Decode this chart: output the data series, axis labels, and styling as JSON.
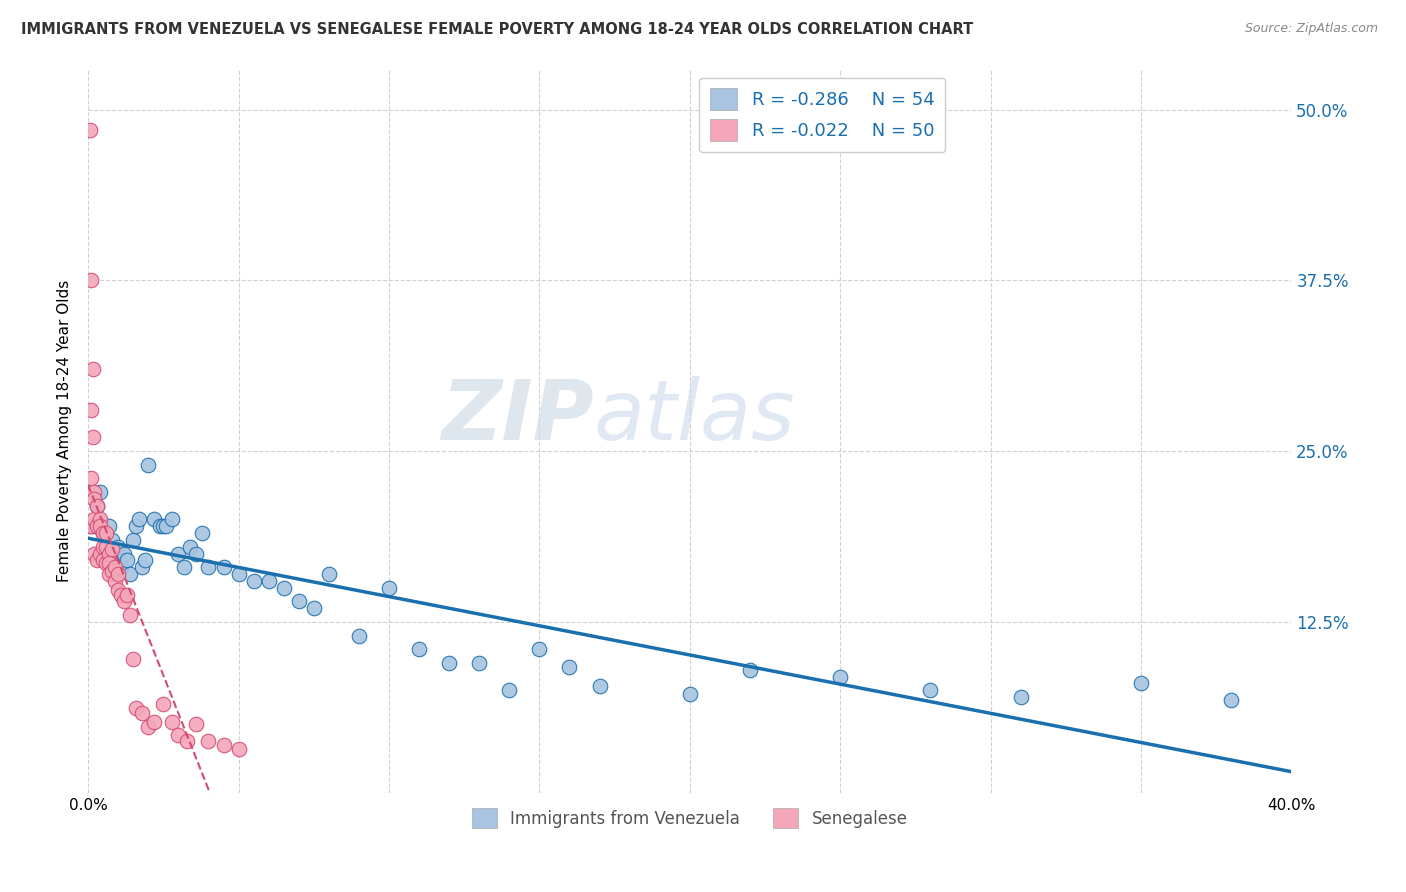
{
  "title": "IMMIGRANTS FROM VENEZUELA VS SENEGALESE FEMALE POVERTY AMONG 18-24 YEAR OLDS CORRELATION CHART",
  "source": "Source: ZipAtlas.com",
  "ylabel": "Female Poverty Among 18-24 Year Olds",
  "yticks": [
    0.0,
    0.125,
    0.25,
    0.375,
    0.5
  ],
  "ytick_labels": [
    "",
    "12.5%",
    "25.0%",
    "37.5%",
    "50.0%"
  ],
  "xlim": [
    0.0,
    0.4
  ],
  "ylim": [
    0.0,
    0.53
  ],
  "legend_blue_r": "R = -0.286",
  "legend_blue_n": "N = 54",
  "legend_pink_r": "R = -0.022",
  "legend_pink_n": "N = 50",
  "blue_color": "#a8c4e0",
  "pink_color": "#f4a7b9",
  "blue_line_color": "#1a6faf",
  "pink_line_color": "#d44a72",
  "watermark_zip": "ZIP",
  "watermark_atlas": "atlas",
  "background_color": "#ffffff",
  "grid_color": "#cccccc",
  "blue_scatter_x": [
    0.002,
    0.003,
    0.004,
    0.005,
    0.006,
    0.007,
    0.008,
    0.009,
    0.01,
    0.011,
    0.012,
    0.013,
    0.014,
    0.015,
    0.016,
    0.017,
    0.018,
    0.019,
    0.02,
    0.022,
    0.024,
    0.025,
    0.026,
    0.028,
    0.03,
    0.032,
    0.034,
    0.036,
    0.038,
    0.04,
    0.045,
    0.05,
    0.055,
    0.06,
    0.065,
    0.07,
    0.075,
    0.08,
    0.09,
    0.1,
    0.11,
    0.12,
    0.13,
    0.14,
    0.15,
    0.16,
    0.17,
    0.2,
    0.22,
    0.25,
    0.28,
    0.31,
    0.35,
    0.38
  ],
  "blue_scatter_y": [
    0.195,
    0.21,
    0.22,
    0.19,
    0.18,
    0.195,
    0.185,
    0.175,
    0.18,
    0.165,
    0.175,
    0.17,
    0.16,
    0.185,
    0.195,
    0.2,
    0.165,
    0.17,
    0.24,
    0.2,
    0.195,
    0.195,
    0.195,
    0.2,
    0.175,
    0.165,
    0.18,
    0.175,
    0.19,
    0.165,
    0.165,
    0.16,
    0.155,
    0.155,
    0.15,
    0.14,
    0.135,
    0.16,
    0.115,
    0.15,
    0.105,
    0.095,
    0.095,
    0.075,
    0.105,
    0.092,
    0.078,
    0.072,
    0.09,
    0.085,
    0.075,
    0.07,
    0.08,
    0.068
  ],
  "pink_scatter_x": [
    0.0005,
    0.0005,
    0.001,
    0.001,
    0.001,
    0.001,
    0.0015,
    0.0015,
    0.002,
    0.002,
    0.002,
    0.002,
    0.003,
    0.003,
    0.003,
    0.004,
    0.004,
    0.004,
    0.005,
    0.005,
    0.005,
    0.006,
    0.006,
    0.006,
    0.007,
    0.007,
    0.007,
    0.008,
    0.008,
    0.009,
    0.009,
    0.01,
    0.01,
    0.011,
    0.012,
    0.013,
    0.014,
    0.015,
    0.016,
    0.018,
    0.02,
    0.022,
    0.025,
    0.028,
    0.03,
    0.033,
    0.036,
    0.04,
    0.045,
    0.05
  ],
  "pink_scatter_y": [
    0.485,
    0.195,
    0.375,
    0.28,
    0.23,
    0.195,
    0.31,
    0.26,
    0.22,
    0.2,
    0.215,
    0.175,
    0.21,
    0.195,
    0.17,
    0.2,
    0.195,
    0.175,
    0.19,
    0.18,
    0.17,
    0.19,
    0.18,
    0.168,
    0.175,
    0.168,
    0.16,
    0.178,
    0.162,
    0.165,
    0.155,
    0.16,
    0.148,
    0.145,
    0.14,
    0.145,
    0.13,
    0.098,
    0.062,
    0.058,
    0.048,
    0.052,
    0.065,
    0.052,
    0.042,
    0.038,
    0.05,
    0.038,
    0.035,
    0.032
  ]
}
